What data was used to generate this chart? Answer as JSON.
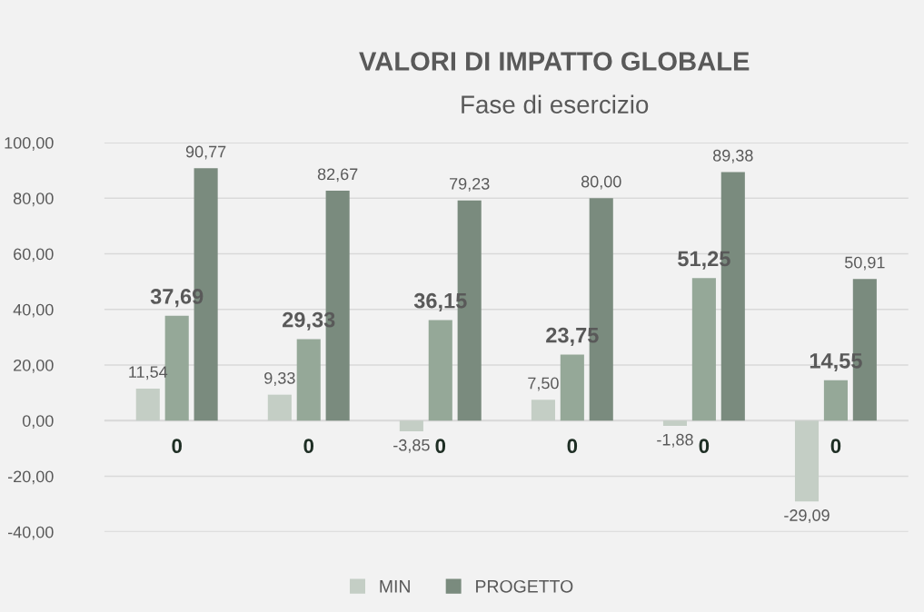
{
  "chart_data": {
    "type": "bar",
    "title": "VALORI DI IMPATTO GLOBALE",
    "subtitle": "Fase di esercizio",
    "categories": [
      "0",
      "0",
      "0",
      "0",
      "0",
      "0"
    ],
    "series": [
      {
        "name": "MIN",
        "color": "#c4cec5",
        "values": [
          11.54,
          9.33,
          -3.85,
          7.5,
          -1.88,
          -29.09
        ],
        "value_labels": [
          "11,54",
          "9,33",
          "-3,85",
          "7,50",
          "-1,88",
          "-29,09"
        ]
      },
      {
        "color": "#95a898",
        "values": [
          37.69,
          29.33,
          36.15,
          23.75,
          51.25,
          14.55
        ],
        "value_labels": [
          "37,69",
          "29,33",
          "36,15",
          "23,75",
          "51,25",
          "14,55"
        ]
      },
      {
        "name": "PROGETTO",
        "color": "#7a8b7e",
        "values": [
          90.77,
          82.67,
          79.23,
          80.0,
          89.38,
          50.91
        ],
        "value_labels": [
          "90,77",
          "82,67",
          "79,23",
          "80,00",
          "89,38",
          "50,91"
        ]
      }
    ],
    "ylim": [
      -40,
      100
    ],
    "yticks": [
      {
        "value": -40,
        "label": "-40,00"
      },
      {
        "value": -20,
        "label": "-20,00"
      },
      {
        "value": 0,
        "label": "0,00"
      },
      {
        "value": 20,
        "label": "20,00"
      },
      {
        "value": 40,
        "label": "40,00"
      },
      {
        "value": 60,
        "label": "60,00"
      },
      {
        "value": 80,
        "label": "80,00"
      },
      {
        "value": 100,
        "label": "100,00"
      }
    ],
    "grid": "y",
    "legend": "bottom"
  }
}
